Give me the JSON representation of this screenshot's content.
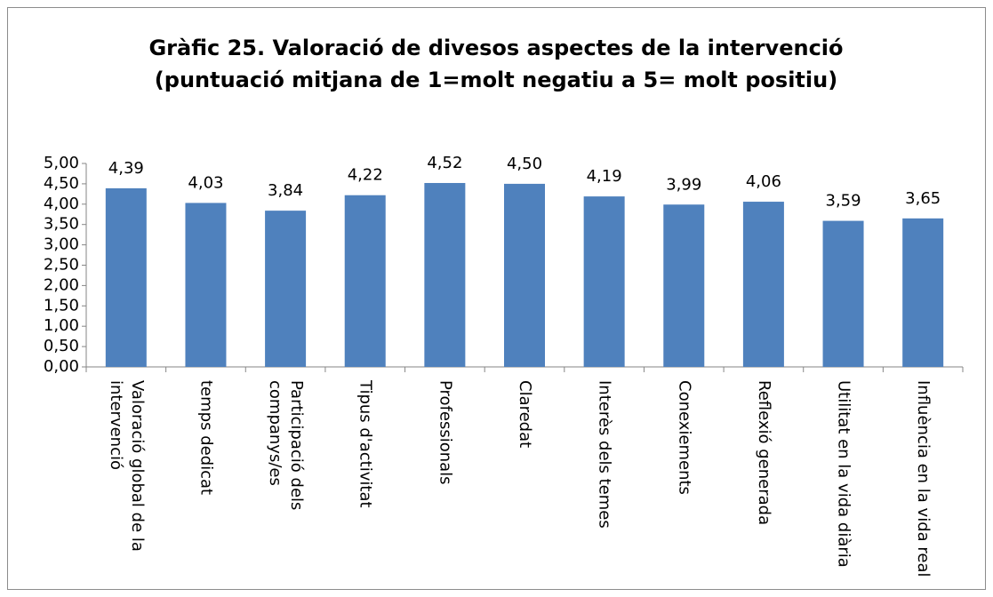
{
  "chart_data": {
    "type": "bar",
    "title": "Gràfic 25. Valoració de divesos aspectes de la intervenció (puntuació mitjana de 1=molt negatiu a 5= molt positiu)",
    "categories": [
      "Valoració global de la intervenció",
      "temps dedicat",
      "Participació dels companys/es",
      "Tipus d'activitat",
      "Professionals",
      "Claredat",
      "Interès dels temes",
      "Conexiements",
      "Reflexió generada",
      "Utilitat en la vida diària",
      "Influència en la vida real"
    ],
    "values": [
      4.39,
      4.03,
      3.84,
      4.22,
      4.52,
      4.5,
      4.19,
      3.99,
      4.06,
      3.59,
      3.65
    ],
    "value_labels": [
      "4,39",
      "4,03",
      "3,84",
      "4,22",
      "4,52",
      "4,50",
      "4,19",
      "3,99",
      "4,06",
      "3,59",
      "3,65"
    ],
    "color": "#4f81bd",
    "ylim": [
      0,
      5
    ],
    "yticks": [
      {
        "value": 0,
        "label": "0,00"
      },
      {
        "value": 0.5,
        "label": "0,50"
      },
      {
        "value": 1,
        "label": "1,00"
      },
      {
        "value": 1.5,
        "label": "1,50"
      },
      {
        "value": 2,
        "label": "2,00"
      },
      {
        "value": 2.5,
        "label": "2,50"
      },
      {
        "value": 3,
        "label": "3,00"
      },
      {
        "value": 3.5,
        "label": "3,50"
      },
      {
        "value": 4,
        "label": "4,00"
      },
      {
        "value": 4.5,
        "label": "4,50"
      },
      {
        "value": 5,
        "label": "5,00"
      }
    ],
    "grid": false
  }
}
